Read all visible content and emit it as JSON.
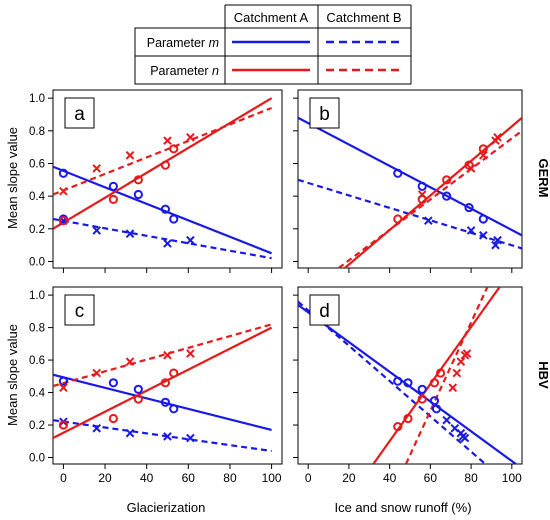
{
  "legend": {
    "col_a": "Catchment A",
    "col_b": "Catchment B",
    "rows": [
      {
        "prefix": "Parameter ",
        "italic": "m",
        "color": "#1a1ae6"
      },
      {
        "prefix": "Parameter ",
        "italic": "n",
        "color": "#e61a1a"
      }
    ]
  },
  "colors": {
    "blue": "#1a1ae6",
    "red": "#e61a1a"
  },
  "chart_data": [
    {
      "type": "scatter",
      "panel_label": "a",
      "row_label": "GERM",
      "xlabel": "",
      "ylabel": "Mean slope value",
      "xlim": [
        0,
        100
      ],
      "ylim": [
        0,
        1
      ],
      "series": [
        {
          "param": "m",
          "catchment": "A",
          "color": "#1a1ae6",
          "marker": "circle",
          "line": "solid",
          "points": [
            [
              0,
              0.54
            ],
            [
              0,
              0.26
            ],
            [
              24,
              0.46
            ],
            [
              36,
              0.41
            ],
            [
              49,
              0.32
            ],
            [
              53,
              0.26
            ]
          ],
          "fit": [
            [
              -5,
              0.58
            ],
            [
              100,
              0.05
            ]
          ]
        },
        {
          "param": "m",
          "catchment": "B",
          "color": "#1a1ae6",
          "marker": "cross",
          "line": "dashed",
          "points": [
            [
              0,
              0.25
            ],
            [
              16,
              0.19
            ],
            [
              32,
              0.17
            ],
            [
              50,
              0.11
            ],
            [
              61,
              0.13
            ]
          ],
          "fit": [
            [
              -5,
              0.26
            ],
            [
              100,
              0.02
            ]
          ]
        },
        {
          "param": "n",
          "catchment": "A",
          "color": "#e61a1a",
          "marker": "circle",
          "line": "solid",
          "points": [
            [
              0,
              0.25
            ],
            [
              24,
              0.38
            ],
            [
              36,
              0.5
            ],
            [
              49,
              0.59
            ],
            [
              53,
              0.69
            ]
          ],
          "fit": [
            [
              -5,
              0.2
            ],
            [
              100,
              1.0
            ]
          ]
        },
        {
          "param": "n",
          "catchment": "B",
          "color": "#e61a1a",
          "marker": "cross",
          "line": "dashed",
          "points": [
            [
              0,
              0.43
            ],
            [
              16,
              0.57
            ],
            [
              32,
              0.65
            ],
            [
              50,
              0.74
            ],
            [
              61,
              0.76
            ]
          ],
          "fit": [
            [
              -5,
              0.41
            ],
            [
              100,
              0.94
            ]
          ]
        }
      ]
    },
    {
      "type": "scatter",
      "panel_label": "b",
      "row_label": "GERM",
      "xlabel": "",
      "ylabel": "",
      "xlim": [
        0,
        100
      ],
      "ylim": [
        0,
        1
      ],
      "series": [
        {
          "param": "m",
          "catchment": "A",
          "color": "#1a1ae6",
          "marker": "circle",
          "line": "solid",
          "points": [
            [
              44,
              0.54
            ],
            [
              56,
              0.46
            ],
            [
              68,
              0.4
            ],
            [
              79,
              0.33
            ],
            [
              86,
              0.26
            ]
          ],
          "fit": [
            [
              -5,
              0.88
            ],
            [
              105,
              0.16
            ]
          ]
        },
        {
          "param": "m",
          "catchment": "B",
          "color": "#1a1ae6",
          "marker": "cross",
          "line": "dashed",
          "points": [
            [
              59,
              0.25
            ],
            [
              80,
              0.19
            ],
            [
              86,
              0.16
            ],
            [
              92,
              0.1
            ],
            [
              93,
              0.13
            ]
          ],
          "fit": [
            [
              -5,
              0.5
            ],
            [
              105,
              0.08
            ]
          ]
        },
        {
          "param": "n",
          "catchment": "A",
          "color": "#e61a1a",
          "marker": "circle",
          "line": "solid",
          "points": [
            [
              44,
              0.26
            ],
            [
              56,
              0.38
            ],
            [
              68,
              0.5
            ],
            [
              79,
              0.59
            ],
            [
              86,
              0.69
            ]
          ],
          "fit": [
            [
              18,
              -0.04
            ],
            [
              105,
              0.88
            ]
          ]
        },
        {
          "param": "n",
          "catchment": "B",
          "color": "#e61a1a",
          "marker": "cross",
          "line": "dashed",
          "points": [
            [
              56,
              0.41
            ],
            [
              80,
              0.57
            ],
            [
              86,
              0.65
            ],
            [
              92,
              0.74
            ],
            [
              93,
              0.76
            ]
          ],
          "fit": [
            [
              15,
              -0.04
            ],
            [
              105,
              0.8
            ]
          ]
        }
      ]
    },
    {
      "type": "scatter",
      "panel_label": "c",
      "row_label": "HBV",
      "xlabel": "Glacierization",
      "ylabel": "Mean slope value",
      "xlim": [
        0,
        100
      ],
      "ylim": [
        0,
        1
      ],
      "series": [
        {
          "param": "m",
          "catchment": "A",
          "color": "#1a1ae6",
          "marker": "circle",
          "line": "solid",
          "points": [
            [
              0,
              0.47
            ],
            [
              24,
              0.46
            ],
            [
              36,
              0.42
            ],
            [
              49,
              0.34
            ],
            [
              53,
              0.3
            ]
          ],
          "fit": [
            [
              -5,
              0.51
            ],
            [
              100,
              0.17
            ]
          ]
        },
        {
          "param": "m",
          "catchment": "B",
          "color": "#1a1ae6",
          "marker": "cross",
          "line": "dashed",
          "points": [
            [
              0,
              0.22
            ],
            [
              16,
              0.18
            ],
            [
              32,
              0.15
            ],
            [
              50,
              0.13
            ],
            [
              61,
              0.12
            ]
          ],
          "fit": [
            [
              -5,
              0.23
            ],
            [
              100,
              0.04
            ]
          ]
        },
        {
          "param": "n",
          "catchment": "A",
          "color": "#e61a1a",
          "marker": "circle",
          "line": "solid",
          "points": [
            [
              0,
              0.2
            ],
            [
              24,
              0.24
            ],
            [
              36,
              0.36
            ],
            [
              49,
              0.46
            ],
            [
              53,
              0.52
            ]
          ],
          "fit": [
            [
              -5,
              0.12
            ],
            [
              100,
              0.8
            ]
          ]
        },
        {
          "param": "n",
          "catchment": "B",
          "color": "#e61a1a",
          "marker": "cross",
          "line": "dashed",
          "points": [
            [
              0,
              0.43
            ],
            [
              16,
              0.52
            ],
            [
              32,
              0.59
            ],
            [
              50,
              0.63
            ],
            [
              61,
              0.64
            ]
          ],
          "fit": [
            [
              -5,
              0.44
            ],
            [
              100,
              0.82
            ]
          ]
        }
      ]
    },
    {
      "type": "scatter",
      "panel_label": "d",
      "row_label": "HBV",
      "xlabel": "Ice and snow runoff (%)",
      "ylabel": "",
      "xlim": [
        0,
        100
      ],
      "ylim": [
        0,
        1
      ],
      "series": [
        {
          "param": "m",
          "catchment": "A",
          "color": "#1a1ae6",
          "marker": "circle",
          "line": "solid",
          "points": [
            [
              44,
              0.47
            ],
            [
              49,
              0.46
            ],
            [
              56,
              0.42
            ],
            [
              62,
              0.35
            ],
            [
              63,
              0.3
            ]
          ],
          "fit": [
            [
              -5,
              0.94
            ],
            [
              102,
              -0.04
            ]
          ]
        },
        {
          "param": "m",
          "catchment": "B",
          "color": "#1a1ae6",
          "marker": "cross",
          "line": "dashed",
          "points": [
            [
              68,
              0.23
            ],
            [
              72,
              0.18
            ],
            [
              75,
              0.15
            ],
            [
              76,
              0.13
            ],
            [
              77,
              0.12
            ]
          ],
          "fit": [
            [
              -5,
              0.96
            ],
            [
              87,
              -0.04
            ]
          ]
        },
        {
          "param": "n",
          "catchment": "A",
          "color": "#e61a1a",
          "marker": "circle",
          "line": "solid",
          "points": [
            [
              44,
              0.19
            ],
            [
              49,
              0.24
            ],
            [
              56,
              0.36
            ],
            [
              62,
              0.46
            ],
            [
              65,
              0.52
            ]
          ],
          "fit": [
            [
              32,
              -0.04
            ],
            [
              94,
              1.05
            ]
          ]
        },
        {
          "param": "n",
          "catchment": "B",
          "color": "#e61a1a",
          "marker": "cross",
          "line": "dashed",
          "points": [
            [
              71,
              0.43
            ],
            [
              73,
              0.52
            ],
            [
              75,
              0.59
            ],
            [
              77,
              0.63
            ],
            [
              78,
              0.64
            ]
          ],
          "fit": [
            [
              48,
              -0.04
            ],
            [
              88,
              1.05
            ]
          ]
        }
      ]
    }
  ]
}
